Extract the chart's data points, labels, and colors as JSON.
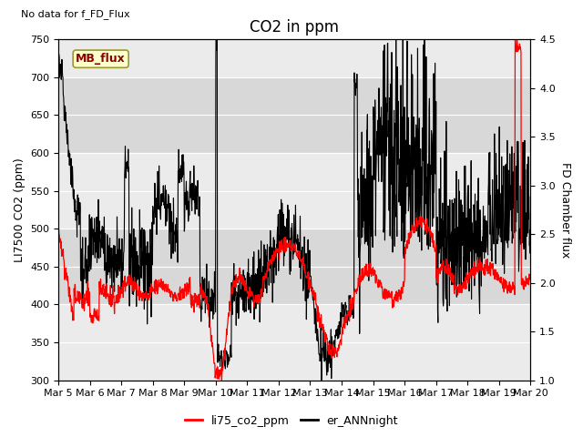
{
  "title": "CO2 in ppm",
  "top_left_text": "No data for f_FD_Flux",
  "ylabel_left": "LI7500 CO2 (ppm)",
  "ylabel_right": "FD Chamber flux",
  "ylim_left": [
    300,
    750
  ],
  "ylim_right": [
    1.0,
    4.5
  ],
  "xlim": [
    0,
    15
  ],
  "xtick_labels": [
    "Mar 5",
    "Mar 6",
    "Mar 7",
    "Mar 8",
    "Mar 9",
    "Mar 10",
    "Mar 11",
    "Mar 12",
    "Mar 13",
    "Mar 14",
    "Mar 15",
    "Mar 16",
    "Mar 17",
    "Mar 18",
    "Mar 19",
    "Mar 20"
  ],
  "legend_entries": [
    "li75_co2_ppm",
    "er_ANNnight"
  ],
  "mb_flux_label": "MB_flux",
  "background_color": "#e8e8e8",
  "band_light": "#ebebeb",
  "band_dark": "#d8d8d8",
  "title_fontsize": 12,
  "axis_label_fontsize": 9,
  "tick_fontsize": 8
}
